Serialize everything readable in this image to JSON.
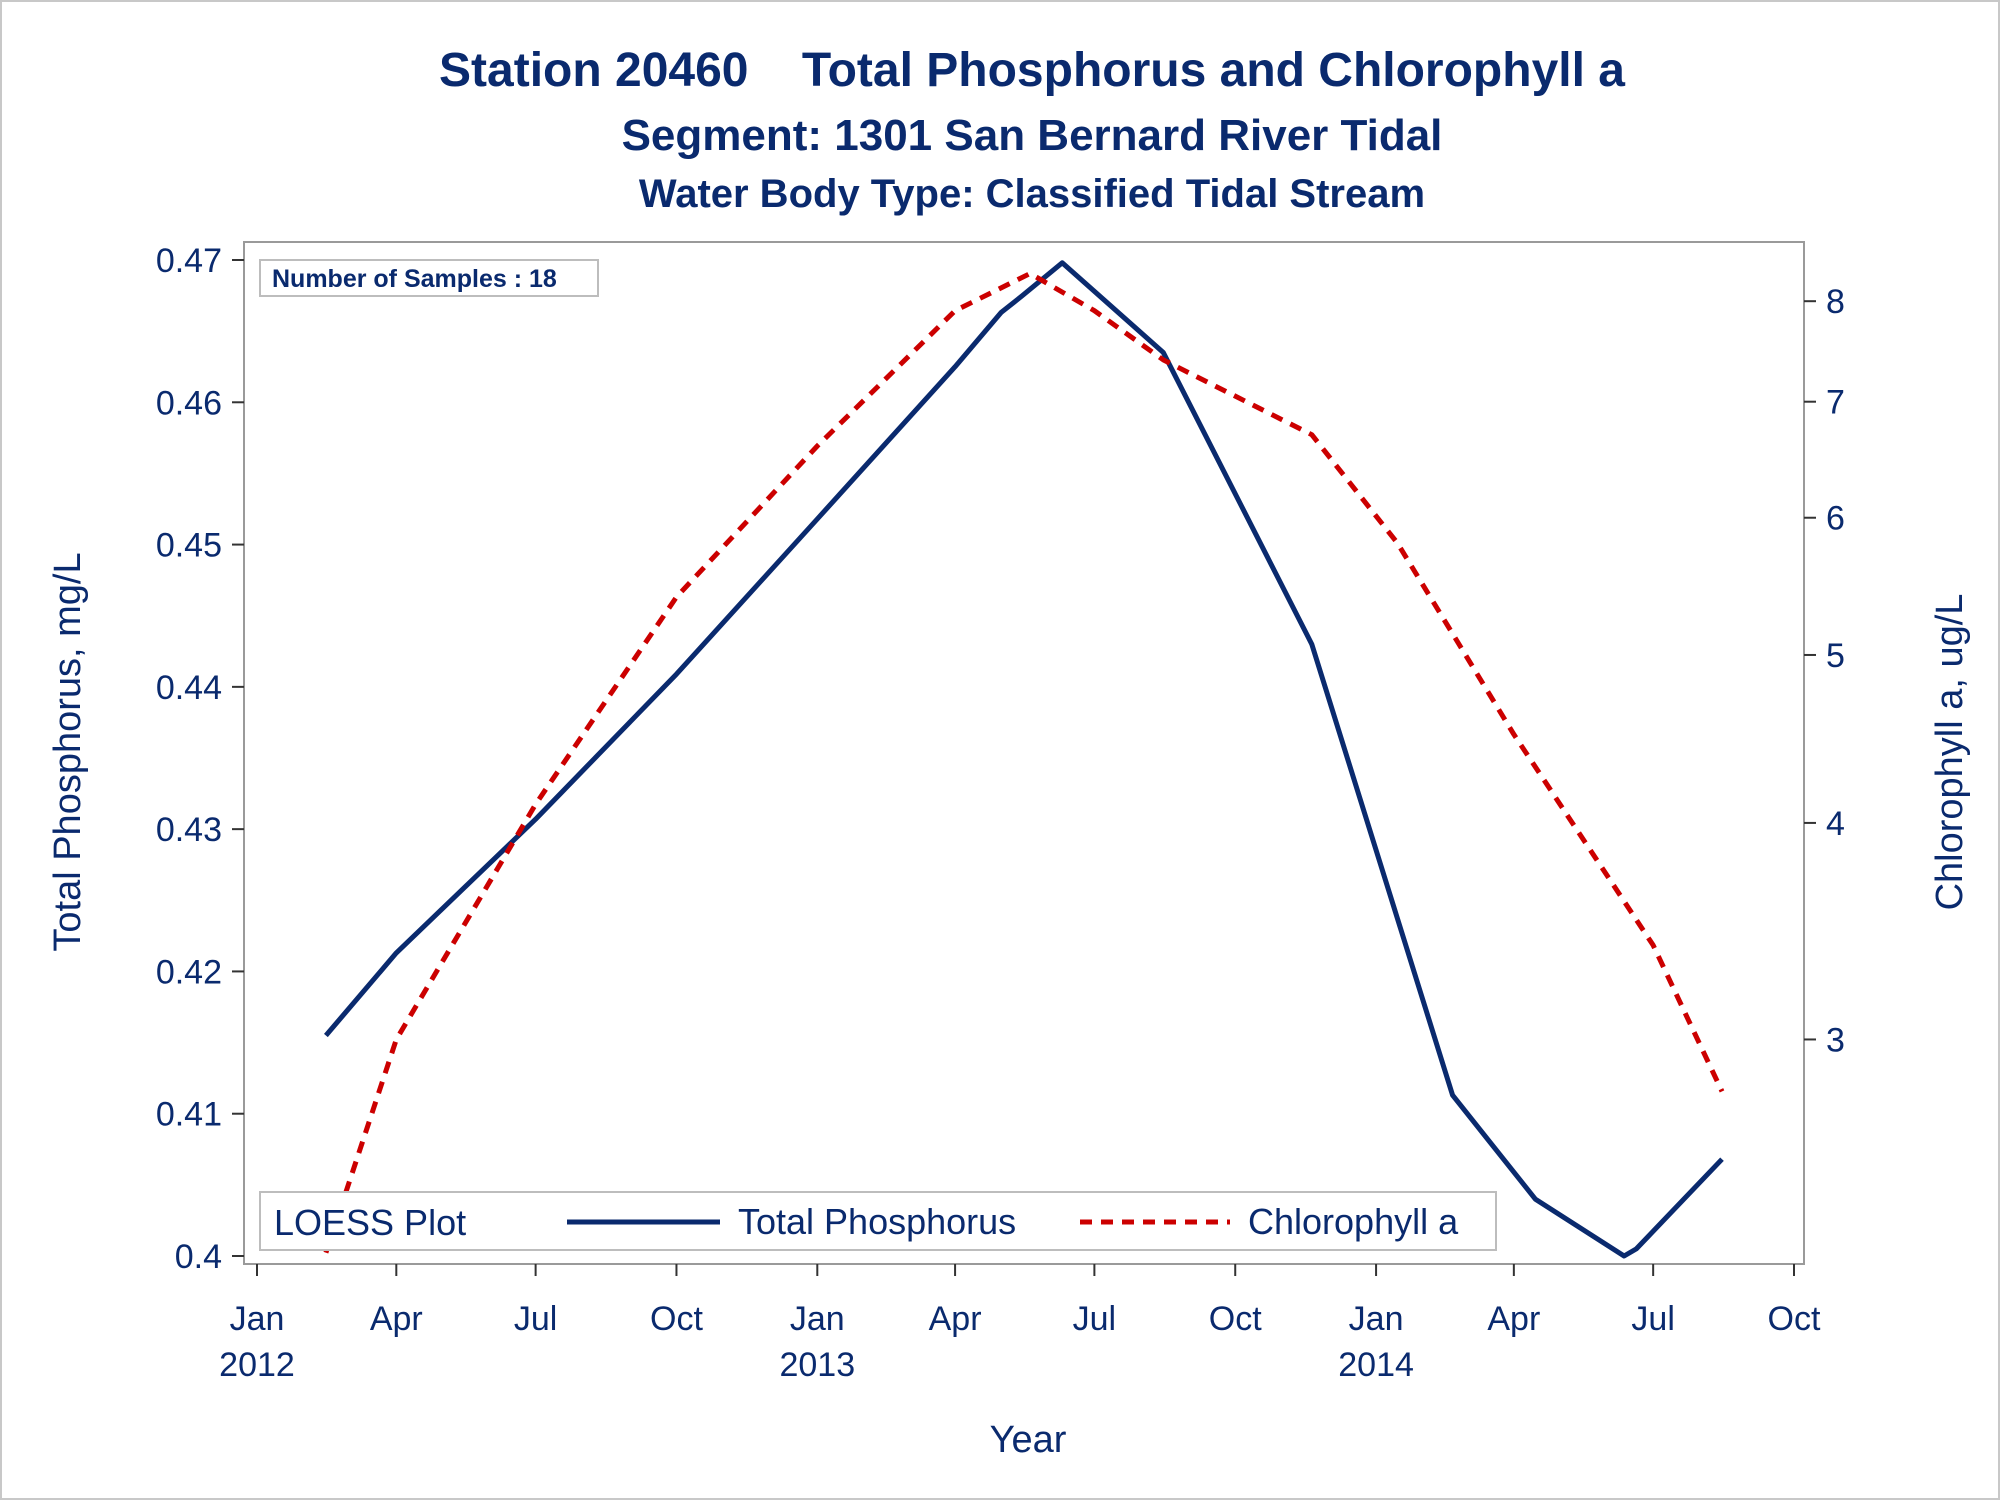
{
  "chart_data": {
    "type": "line",
    "title": "Station 20460    Total Phosphorus and Chlorophyll a",
    "subtitle": "Segment: 1301  San Bernard River Tidal",
    "subtitle2": "Water Body Type: Classified Tidal Stream",
    "xlabel": "Year",
    "ylabel": "Total Phosphorus, mg/L",
    "y2label": "Chlorophyll a, ug/L",
    "annotation": "Number of Samples : 18",
    "legend": {
      "title": "LOESS Plot",
      "placement": "bottom-left",
      "entries": [
        "Total Phosphorus",
        "Chlorophyll a"
      ]
    },
    "x_ticks": [
      {
        "date": "2012-01-01",
        "month": "Jan",
        "year": "2012"
      },
      {
        "date": "2012-04-01",
        "month": "Apr",
        "year": ""
      },
      {
        "date": "2012-07-01",
        "month": "Jul",
        "year": ""
      },
      {
        "date": "2012-10-01",
        "month": "Oct",
        "year": ""
      },
      {
        "date": "2013-01-01",
        "month": "Jan",
        "year": "2013"
      },
      {
        "date": "2013-04-01",
        "month": "Apr",
        "year": ""
      },
      {
        "date": "2013-07-01",
        "month": "Jul",
        "year": ""
      },
      {
        "date": "2013-10-01",
        "month": "Oct",
        "year": ""
      },
      {
        "date": "2014-01-01",
        "month": "Jan",
        "year": "2014"
      },
      {
        "date": "2014-04-01",
        "month": "Apr",
        "year": ""
      },
      {
        "date": "2014-07-01",
        "month": "Jul",
        "year": ""
      },
      {
        "date": "2014-10-01",
        "month": "Oct",
        "year": ""
      }
    ],
    "xlim": [
      "2012-01-01",
      "2014-10-01"
    ],
    "ylim": [
      0.4,
      0.47
    ],
    "y_ticks": [
      "0.4",
      "0.41",
      "0.42",
      "0.43",
      "0.44",
      "0.45",
      "0.46",
      "0.47"
    ],
    "y2_scale": "log",
    "y2lim": [
      2.25,
      8.45
    ],
    "y2_ticks": [
      "3",
      "4",
      "5",
      "6",
      "7",
      "8"
    ],
    "colors": {
      "phosphorus": "#0a2a6e",
      "chlorophyll": "#cc0000",
      "text": "#0a2a6e"
    },
    "series": [
      {
        "name": "Total Phosphorus",
        "axis": "left",
        "style": "solid",
        "x": [
          "2012-02-15",
          "2012-04-01",
          "2012-07-01",
          "2012-10-01",
          "2013-01-01",
          "2013-04-01",
          "2013-05-01",
          "2013-05-15",
          "2013-06-10",
          "2013-08-15",
          "2013-11-20",
          "2014-02-20",
          "2014-04-15",
          "2014-06-12",
          "2014-06-20",
          "2014-08-15"
        ],
        "values": [
          0.4155,
          0.4213,
          0.4307,
          0.4409,
          0.4518,
          0.4625,
          0.4663,
          0.4675,
          0.4698,
          0.4635,
          0.443,
          0.4113,
          0.404,
          0.4,
          0.4005,
          0.4068
        ]
      },
      {
        "name": "Chlorophyll a",
        "axis": "right",
        "style": "dashed",
        "x": [
          "2012-02-15",
          "2012-04-01",
          "2012-07-01",
          "2012-10-01",
          "2013-01-01",
          "2013-04-01",
          "2013-05-20",
          "2013-07-01",
          "2013-08-15",
          "2013-11-20",
          "2014-01-15",
          "2014-04-01",
          "2014-07-01",
          "2014-08-15"
        ],
        "values": [
          2.26,
          3.0,
          4.1,
          5.4,
          6.6,
          7.9,
          8.3,
          7.9,
          7.4,
          6.7,
          5.8,
          4.5,
          3.4,
          2.8
        ]
      }
    ]
  }
}
